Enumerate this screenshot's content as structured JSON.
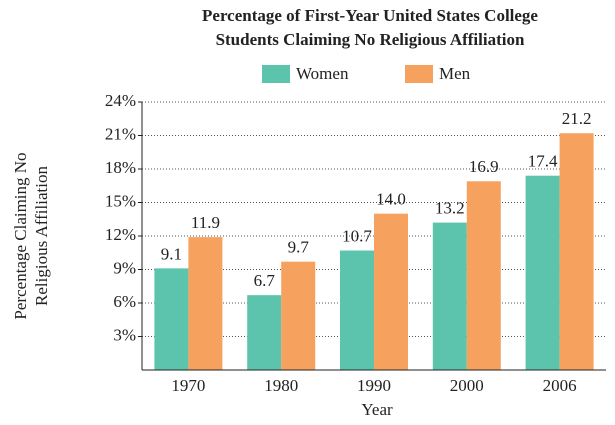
{
  "chart_data": {
    "type": "bar",
    "title": [
      "Percentage of First-Year United States College",
      "Students Claiming No Religious Affiliation"
    ],
    "ylabel": [
      "Percentage Claiming No",
      "Religious Affiliation"
    ],
    "xlabel": "Year",
    "categories": [
      "1970",
      "1980",
      "1990",
      "2000",
      "2006"
    ],
    "series": [
      {
        "name": "Women",
        "color": "#5cc4ad",
        "values": [
          9.1,
          6.7,
          10.7,
          13.2,
          17.4
        ]
      },
      {
        "name": "Men",
        "color": "#f6a15e",
        "values": [
          11.9,
          9.7,
          14.0,
          16.9,
          21.2
        ],
        "value_labels": [
          "11.9",
          "9.7",
          "14.0",
          "16.9",
          "21.2"
        ]
      }
    ],
    "ylim": [
      0,
      24
    ],
    "yticks": [
      {
        "value": 3,
        "label": "3%"
      },
      {
        "value": 6,
        "label": "6%"
      },
      {
        "value": 9,
        "label": "9%"
      },
      {
        "value": 12,
        "label": "12%"
      },
      {
        "value": 15,
        "label": "15%"
      },
      {
        "value": 18,
        "label": "18%"
      },
      {
        "value": 21,
        "label": "21%"
      },
      {
        "value": 24,
        "label": "24%"
      }
    ],
    "grid": true
  }
}
